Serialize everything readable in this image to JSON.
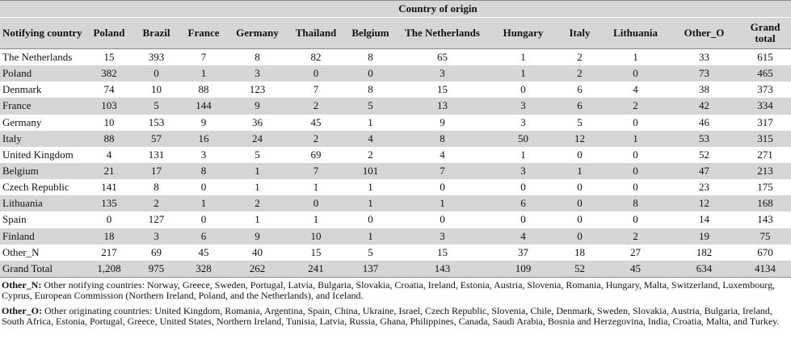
{
  "header": {
    "title": "Country of origin"
  },
  "table": {
    "columns": [
      "Notifying country",
      "Poland",
      "Brazil",
      "France",
      "Germany",
      "Thailand",
      "Belgium",
      "The Netherlands",
      "Hungary",
      "Italy",
      "Lithuania",
      "Other_O",
      "Grand total"
    ],
    "rows": [
      [
        "The Netherlands",
        "15",
        "393",
        "7",
        "8",
        "82",
        "8",
        "65",
        "1",
        "2",
        "1",
        "33",
        "615"
      ],
      [
        "Poland",
        "382",
        "0",
        "1",
        "3",
        "0",
        "0",
        "3",
        "1",
        "2",
        "0",
        "73",
        "465"
      ],
      [
        "Denmark",
        "74",
        "10",
        "88",
        "123",
        "7",
        "8",
        "15",
        "0",
        "6",
        "4",
        "38",
        "373"
      ],
      [
        "France",
        "103",
        "5",
        "144",
        "9",
        "2",
        "5",
        "13",
        "3",
        "6",
        "2",
        "42",
        "334"
      ],
      [
        "Germany",
        "10",
        "153",
        "9",
        "36",
        "45",
        "1",
        "9",
        "3",
        "5",
        "0",
        "46",
        "317"
      ],
      [
        "Italy",
        "88",
        "57",
        "16",
        "24",
        "2",
        "4",
        "8",
        "50",
        "12",
        "1",
        "53",
        "315"
      ],
      [
        "United Kingdom",
        "4",
        "131",
        "3",
        "5",
        "69",
        "2",
        "4",
        "1",
        "0",
        "0",
        "52",
        "271"
      ],
      [
        "Belgium",
        "21",
        "17",
        "8",
        "1",
        "7",
        "101",
        "7",
        "3",
        "1",
        "0",
        "47",
        "213"
      ],
      [
        "Czech Republic",
        "141",
        "8",
        "0",
        "1",
        "1",
        "1",
        "0",
        "0",
        "0",
        "0",
        "23",
        "175"
      ],
      [
        "Lithuania",
        "135",
        "2",
        "1",
        "2",
        "0",
        "1",
        "1",
        "6",
        "0",
        "8",
        "12",
        "168"
      ],
      [
        "Spain",
        "0",
        "127",
        "0",
        "1",
        "1",
        "0",
        "0",
        "0",
        "0",
        "0",
        "14",
        "143"
      ],
      [
        "Finland",
        "18",
        "3",
        "6",
        "9",
        "10",
        "1",
        "3",
        "4",
        "0",
        "2",
        "19",
        "75"
      ],
      [
        "Other_N",
        "217",
        "69",
        "45",
        "40",
        "15",
        "5",
        "15",
        "37",
        "18",
        "27",
        "182",
        "670"
      ],
      [
        "Grand Total",
        "1,208",
        "975",
        "328",
        "262",
        "241",
        "137",
        "143",
        "109",
        "52",
        "45",
        "634",
        "4134"
      ]
    ]
  },
  "notes": [
    {
      "label": "Other_N:",
      "text": "Other notifying countries: Norway, Greece, Sweden, Portugal, Latvia, Bulgaria, Slovakia, Croatia, Ireland, Estonia, Austria, Slovenia, Romania, Hungary, Malta, Switzerland, Luxembourg, Cyprus, European Commission (Northern Ireland, Poland, and the Netherlands), and Iceland."
    },
    {
      "label": "Other_O:",
      "text": "Other originating countries: United Kingdom, Romania, Argentina, Spain, China, Ukraine, Israel, Czech Republic, Slovenia, Chile, Denmark, Sweden, Slovakia, Austria, Bulgaria, Ireland, South Africa, Estonia, Portugal, Greece, United States, Northern Ireland, Tunisia, Latvia, Russia, Ghana, Philippines, Canada, Saudi Arabia, Bosnia and Herzegovina, India, Croatia, Malta, and Turkey."
    }
  ]
}
